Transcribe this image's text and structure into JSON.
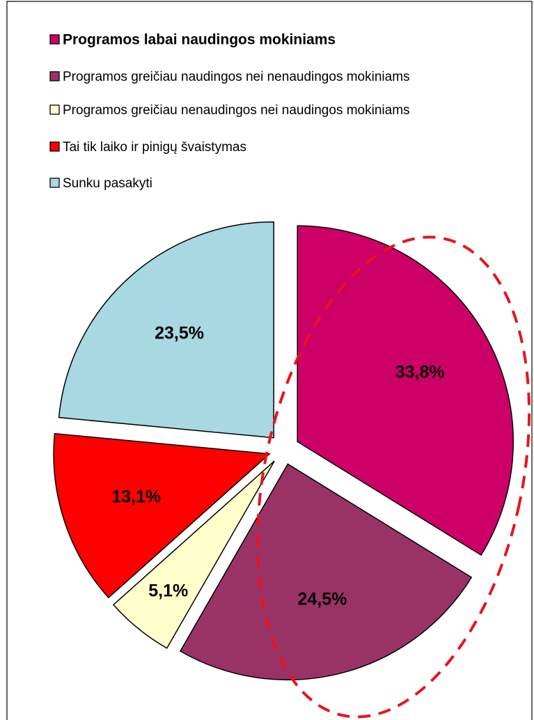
{
  "chart_data": {
    "type": "pie",
    "categories": [
      "Programos labai naudingos mokiniams",
      "Programos greičiau naudingos nei nenaudingos mokiniams",
      "Programos greičiau nenaudingos nei naudingos mokiniams",
      "Tai tik laiko ir pinigų švaistymas",
      "Sunku pasakyti"
    ],
    "values": [
      33.8,
      24.5,
      5.1,
      13.1,
      23.5
    ],
    "value_labels": [
      "33,8%",
      "24,5%",
      "5,1%",
      "13,1%",
      "23,5%"
    ],
    "colors": [
      "#cc0066",
      "#993366",
      "#ffffcc",
      "#ff0000",
      "#a8d8e2"
    ]
  }
}
